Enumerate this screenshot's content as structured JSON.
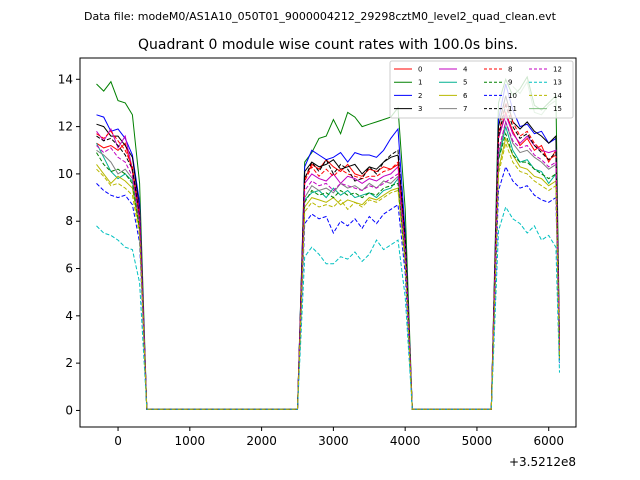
{
  "chart_data": {
    "type": "line",
    "suptitle": "Data file: modeM0/AS1A10_050T01_9000004212_29298cztM0_level2_quad_clean.evt",
    "title": "Quadrant 0 module wise count rates with 100.0s bins.",
    "xlabel": "",
    "ylabel": "",
    "x_offset_label": "+3.5212e8",
    "xlim": [
      -530,
      6380
    ],
    "ylim": [
      -0.7,
      14.9
    ],
    "xticks": [
      0,
      1000,
      2000,
      3000,
      4000,
      5000,
      6000
    ],
    "yticks": [
      0,
      2,
      4,
      6,
      8,
      10,
      12,
      14
    ],
    "grid": false,
    "legend_location": "upper right",
    "x": [
      -300,
      -200,
      -100,
      0,
      100,
      200,
      300,
      400,
      2500,
      2600,
      2700,
      2800,
      2900,
      3000,
      3100,
      3200,
      3300,
      3400,
      3500,
      3600,
      3700,
      3800,
      3900,
      4000,
      4100,
      5200,
      5300,
      5400,
      5500,
      5600,
      5700,
      5800,
      5900,
      6000,
      6100,
      6150
    ],
    "series": [
      {
        "name": "0",
        "color": "#ff0000",
        "dash": "solid",
        "values": [
          11.3,
          11.1,
          11.2,
          11.0,
          11.3,
          10.1,
          8.2,
          0.05,
          0.05,
          9.8,
          10.4,
          10.2,
          10.6,
          10.3,
          10.1,
          10.4,
          10.0,
          9.9,
          10.2,
          10.1,
          10.3,
          10.2,
          10.4,
          7.0,
          0.05,
          0.05,
          11.5,
          12.6,
          11.8,
          11.2,
          11.5,
          11.0,
          11.2,
          10.5,
          11.0,
          2.5
        ]
      },
      {
        "name": "1",
        "color": "#008000",
        "dash": "solid",
        "values": [
          13.8,
          13.5,
          13.9,
          13.1,
          13.0,
          12.5,
          9.6,
          0.05,
          0.05,
          10.5,
          10.9,
          11.5,
          11.6,
          12.3,
          11.7,
          12.6,
          12.4,
          12.0,
          12.1,
          12.2,
          12.3,
          12.4,
          12.8,
          8.5,
          0.05,
          0.05,
          13.0,
          14.0,
          13.3,
          13.6,
          14.1,
          12.9,
          12.7,
          13.0,
          13.3,
          3.0
        ]
      },
      {
        "name": "2",
        "color": "#0000ff",
        "dash": "solid",
        "values": [
          12.5,
          12.4,
          11.8,
          11.9,
          11.5,
          10.8,
          8.8,
          0.05,
          0.05,
          10.3,
          11.0,
          10.8,
          10.6,
          10.7,
          10.9,
          10.5,
          10.9,
          10.8,
          10.8,
          10.7,
          11.0,
          11.5,
          11.9,
          7.5,
          0.05,
          0.05,
          12.3,
          13.8,
          12.7,
          12.0,
          12.1,
          11.7,
          11.8,
          11.3,
          11.5,
          2.7
        ]
      },
      {
        "name": "3",
        "color": "#000000",
        "dash": "solid",
        "values": [
          12.1,
          12.0,
          11.6,
          11.6,
          11.2,
          10.7,
          8.5,
          0.05,
          0.05,
          10.1,
          10.5,
          10.3,
          10.4,
          10.6,
          10.2,
          10.3,
          10.4,
          10.0,
          10.3,
          10.2,
          10.5,
          10.7,
          10.8,
          7.2,
          0.05,
          0.05,
          12.0,
          13.3,
          12.2,
          11.9,
          12.2,
          11.8,
          11.6,
          11.3,
          11.6,
          2.8
        ]
      },
      {
        "name": "4",
        "color": "#c000c0",
        "dash": "solid",
        "values": [
          11.8,
          11.4,
          11.9,
          11.1,
          11.6,
          10.2,
          8.4,
          0.05,
          0.05,
          9.6,
          10.0,
          9.8,
          9.7,
          10.0,
          9.6,
          9.9,
          9.8,
          9.6,
          9.8,
          9.7,
          9.9,
          10.0,
          10.3,
          6.9,
          0.05,
          0.05,
          11.5,
          12.5,
          11.7,
          11.3,
          11.6,
          11.2,
          11.0,
          10.9,
          11.0,
          2.6
        ]
      },
      {
        "name": "5",
        "color": "#00b090",
        "dash": "solid",
        "values": [
          11.3,
          10.7,
          10.1,
          9.8,
          10.0,
          9.7,
          7.8,
          0.05,
          0.05,
          8.9,
          9.2,
          9.3,
          9.0,
          9.4,
          9.1,
          9.3,
          9.0,
          9.1,
          9.2,
          9.0,
          9.3,
          9.4,
          9.8,
          6.5,
          0.05,
          0.05,
          10.6,
          12.0,
          11.0,
          10.5,
          10.6,
          10.2,
          10.1,
          9.6,
          10.0,
          2.3
        ]
      },
      {
        "name": "6",
        "color": "#b8b800",
        "dash": "solid",
        "values": [
          10.4,
          10.0,
          9.6,
          9.9,
          9.7,
          9.4,
          7.6,
          0.05,
          0.05,
          8.6,
          9.0,
          8.9,
          8.8,
          9.0,
          8.7,
          8.9,
          8.8,
          8.7,
          9.0,
          8.9,
          9.1,
          9.3,
          9.4,
          6.3,
          0.05,
          0.05,
          10.2,
          11.5,
          10.8,
          10.3,
          10.2,
          9.9,
          9.8,
          9.5,
          9.7,
          2.2
        ]
      },
      {
        "name": "7",
        "color": "#808080",
        "dash": "solid",
        "values": [
          11.0,
          10.8,
          10.5,
          10.0,
          10.2,
          9.8,
          7.9,
          0.05,
          0.05,
          9.0,
          9.5,
          9.3,
          9.4,
          9.2,
          9.6,
          9.4,
          9.5,
          9.3,
          9.6,
          9.4,
          9.7,
          9.6,
          9.9,
          6.6,
          0.05,
          0.05,
          10.8,
          12.2,
          11.3,
          10.9,
          11.0,
          10.7,
          10.5,
          10.2,
          10.4,
          2.4
        ]
      },
      {
        "name": "8",
        "color": "#ff0000",
        "dash": "dashed",
        "values": [
          11.7,
          11.5,
          11.8,
          11.4,
          11.0,
          10.3,
          8.1,
          0.05,
          0.05,
          9.7,
          10.3,
          9.9,
          10.2,
          9.9,
          10.2,
          10.0,
          9.9,
          9.8,
          9.9,
          9.9,
          10.1,
          10.2,
          10.5,
          7.1,
          0.05,
          0.05,
          11.7,
          13.0,
          12.2,
          11.6,
          11.8,
          11.3,
          11.0,
          10.6,
          10.8,
          2.6
        ]
      },
      {
        "name": "9",
        "color": "#008000",
        "dash": "dashed",
        "values": [
          10.9,
          10.4,
          10.1,
          10.2,
          10.0,
          9.6,
          7.7,
          0.05,
          0.05,
          8.8,
          9.3,
          9.1,
          9.2,
          9.0,
          9.3,
          9.1,
          9.2,
          9.0,
          9.2,
          9.1,
          9.4,
          9.5,
          9.6,
          6.4,
          0.05,
          0.05,
          10.6,
          11.7,
          10.8,
          10.5,
          10.5,
          10.2,
          10.0,
          9.8,
          10.0,
          2.3
        ]
      },
      {
        "name": "10",
        "color": "#0000ff",
        "dash": "dashed",
        "values": [
          9.6,
          9.3,
          9.1,
          9.0,
          9.1,
          8.7,
          7.1,
          0.05,
          0.05,
          7.9,
          8.3,
          8.1,
          8.2,
          7.5,
          8.0,
          7.8,
          8.1,
          7.7,
          8.2,
          7.9,
          8.3,
          8.5,
          8.7,
          5.8,
          0.05,
          0.05,
          9.3,
          10.3,
          9.7,
          9.4,
          9.5,
          9.1,
          8.9,
          8.8,
          9.0,
          2.0
        ]
      },
      {
        "name": "11",
        "color": "#000000",
        "dash": "dashed",
        "values": [
          11.6,
          11.4,
          11.5,
          11.2,
          10.8,
          10.2,
          8.2,
          0.05,
          0.05,
          9.8,
          10.5,
          10.1,
          10.6,
          10.0,
          10.4,
          10.2,
          9.7,
          9.8,
          10.3,
          10.0,
          10.5,
          10.8,
          11.0,
          7.2,
          0.05,
          0.05,
          11.6,
          12.9,
          12.0,
          11.5,
          11.7,
          11.2,
          10.9,
          10.6,
          10.9,
          2.7
        ]
      },
      {
        "name": "12",
        "color": "#c000c0",
        "dash": "dashed",
        "values": [
          11.2,
          10.9,
          11.1,
          10.7,
          10.5,
          9.9,
          8.0,
          0.05,
          0.05,
          9.3,
          9.7,
          9.5,
          9.6,
          9.3,
          9.6,
          9.5,
          9.4,
          9.3,
          9.5,
          9.4,
          9.6,
          9.8,
          10.0,
          6.8,
          0.05,
          0.05,
          11.0,
          12.2,
          11.4,
          11.1,
          11.2,
          10.8,
          10.6,
          10.3,
          10.5,
          2.5
        ]
      },
      {
        "name": "13",
        "color": "#00c0c0",
        "dash": "dashed",
        "values": [
          7.8,
          7.5,
          7.4,
          7.2,
          6.9,
          6.8,
          5.4,
          0.05,
          0.05,
          6.5,
          6.9,
          6.6,
          6.2,
          6.2,
          6.5,
          6.4,
          6.7,
          6.3,
          6.6,
          7.2,
          6.8,
          7.0,
          7.2,
          4.8,
          0.05,
          0.05,
          7.6,
          8.6,
          8.1,
          7.9,
          7.5,
          7.8,
          7.2,
          7.4,
          6.9,
          1.6
        ]
      },
      {
        "name": "14",
        "color": "#b8b800",
        "dash": "dashed",
        "values": [
          10.2,
          9.9,
          9.5,
          9.6,
          9.4,
          9.1,
          7.4,
          0.05,
          0.05,
          8.4,
          8.8,
          8.6,
          8.7,
          8.6,
          8.9,
          8.5,
          8.8,
          8.6,
          8.9,
          8.8,
          9.0,
          9.2,
          9.3,
          6.2,
          0.05,
          0.05,
          10.0,
          11.3,
          10.5,
          10.1,
          10.0,
          9.7,
          9.5,
          9.3,
          9.5,
          2.2
        ]
      },
      {
        "name": "15",
        "color": "#80c080",
        "dash": "solid",
        "values": [
          null,
          null,
          null,
          null,
          null,
          null,
          null,
          null,
          null,
          null,
          null,
          null,
          null,
          null,
          null,
          null,
          null,
          null,
          null,
          null,
          null,
          null,
          null,
          null,
          null,
          null,
          null,
          null,
          13.7,
          13.4,
          13.9,
          12.6,
          12.5,
          12.9,
          13.1,
          null
        ]
      }
    ]
  }
}
